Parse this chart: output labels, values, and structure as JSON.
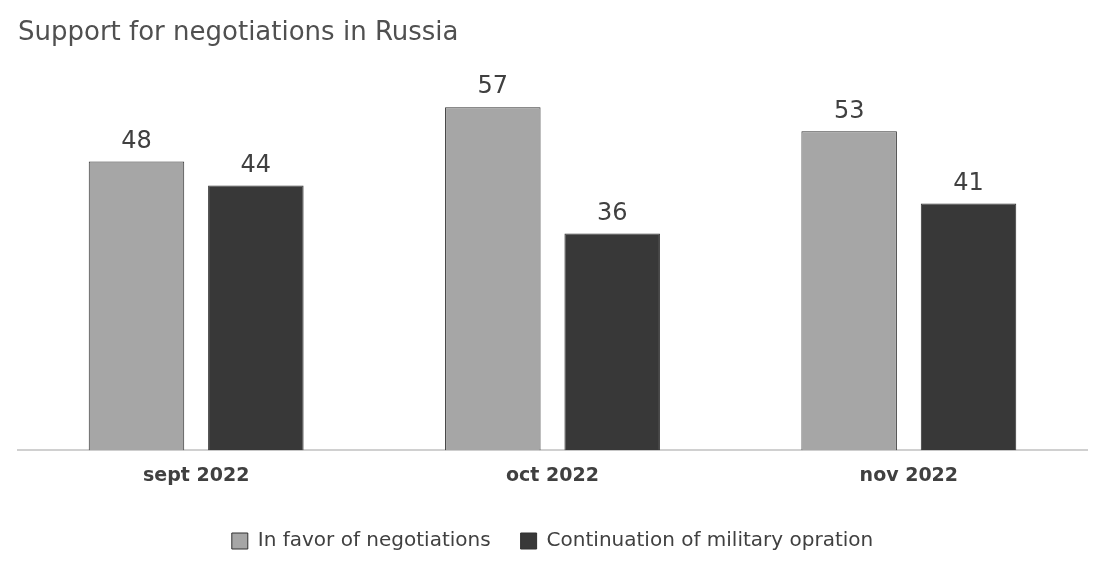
{
  "chart_data": {
    "type": "bar",
    "title": "Support for negotiations in Russia",
    "categories": [
      "sept 2022",
      "oct 2022",
      "nov 2022"
    ],
    "series": [
      {
        "name": "In favor of negotiations",
        "color": "#a6a6a6",
        "values": [
          48,
          57,
          53
        ]
      },
      {
        "name": "Continuation of military opration",
        "color": "#383838",
        "values": [
          44,
          36,
          41
        ]
      }
    ],
    "data_labels": true,
    "legend": "bottom",
    "grid": false
  }
}
